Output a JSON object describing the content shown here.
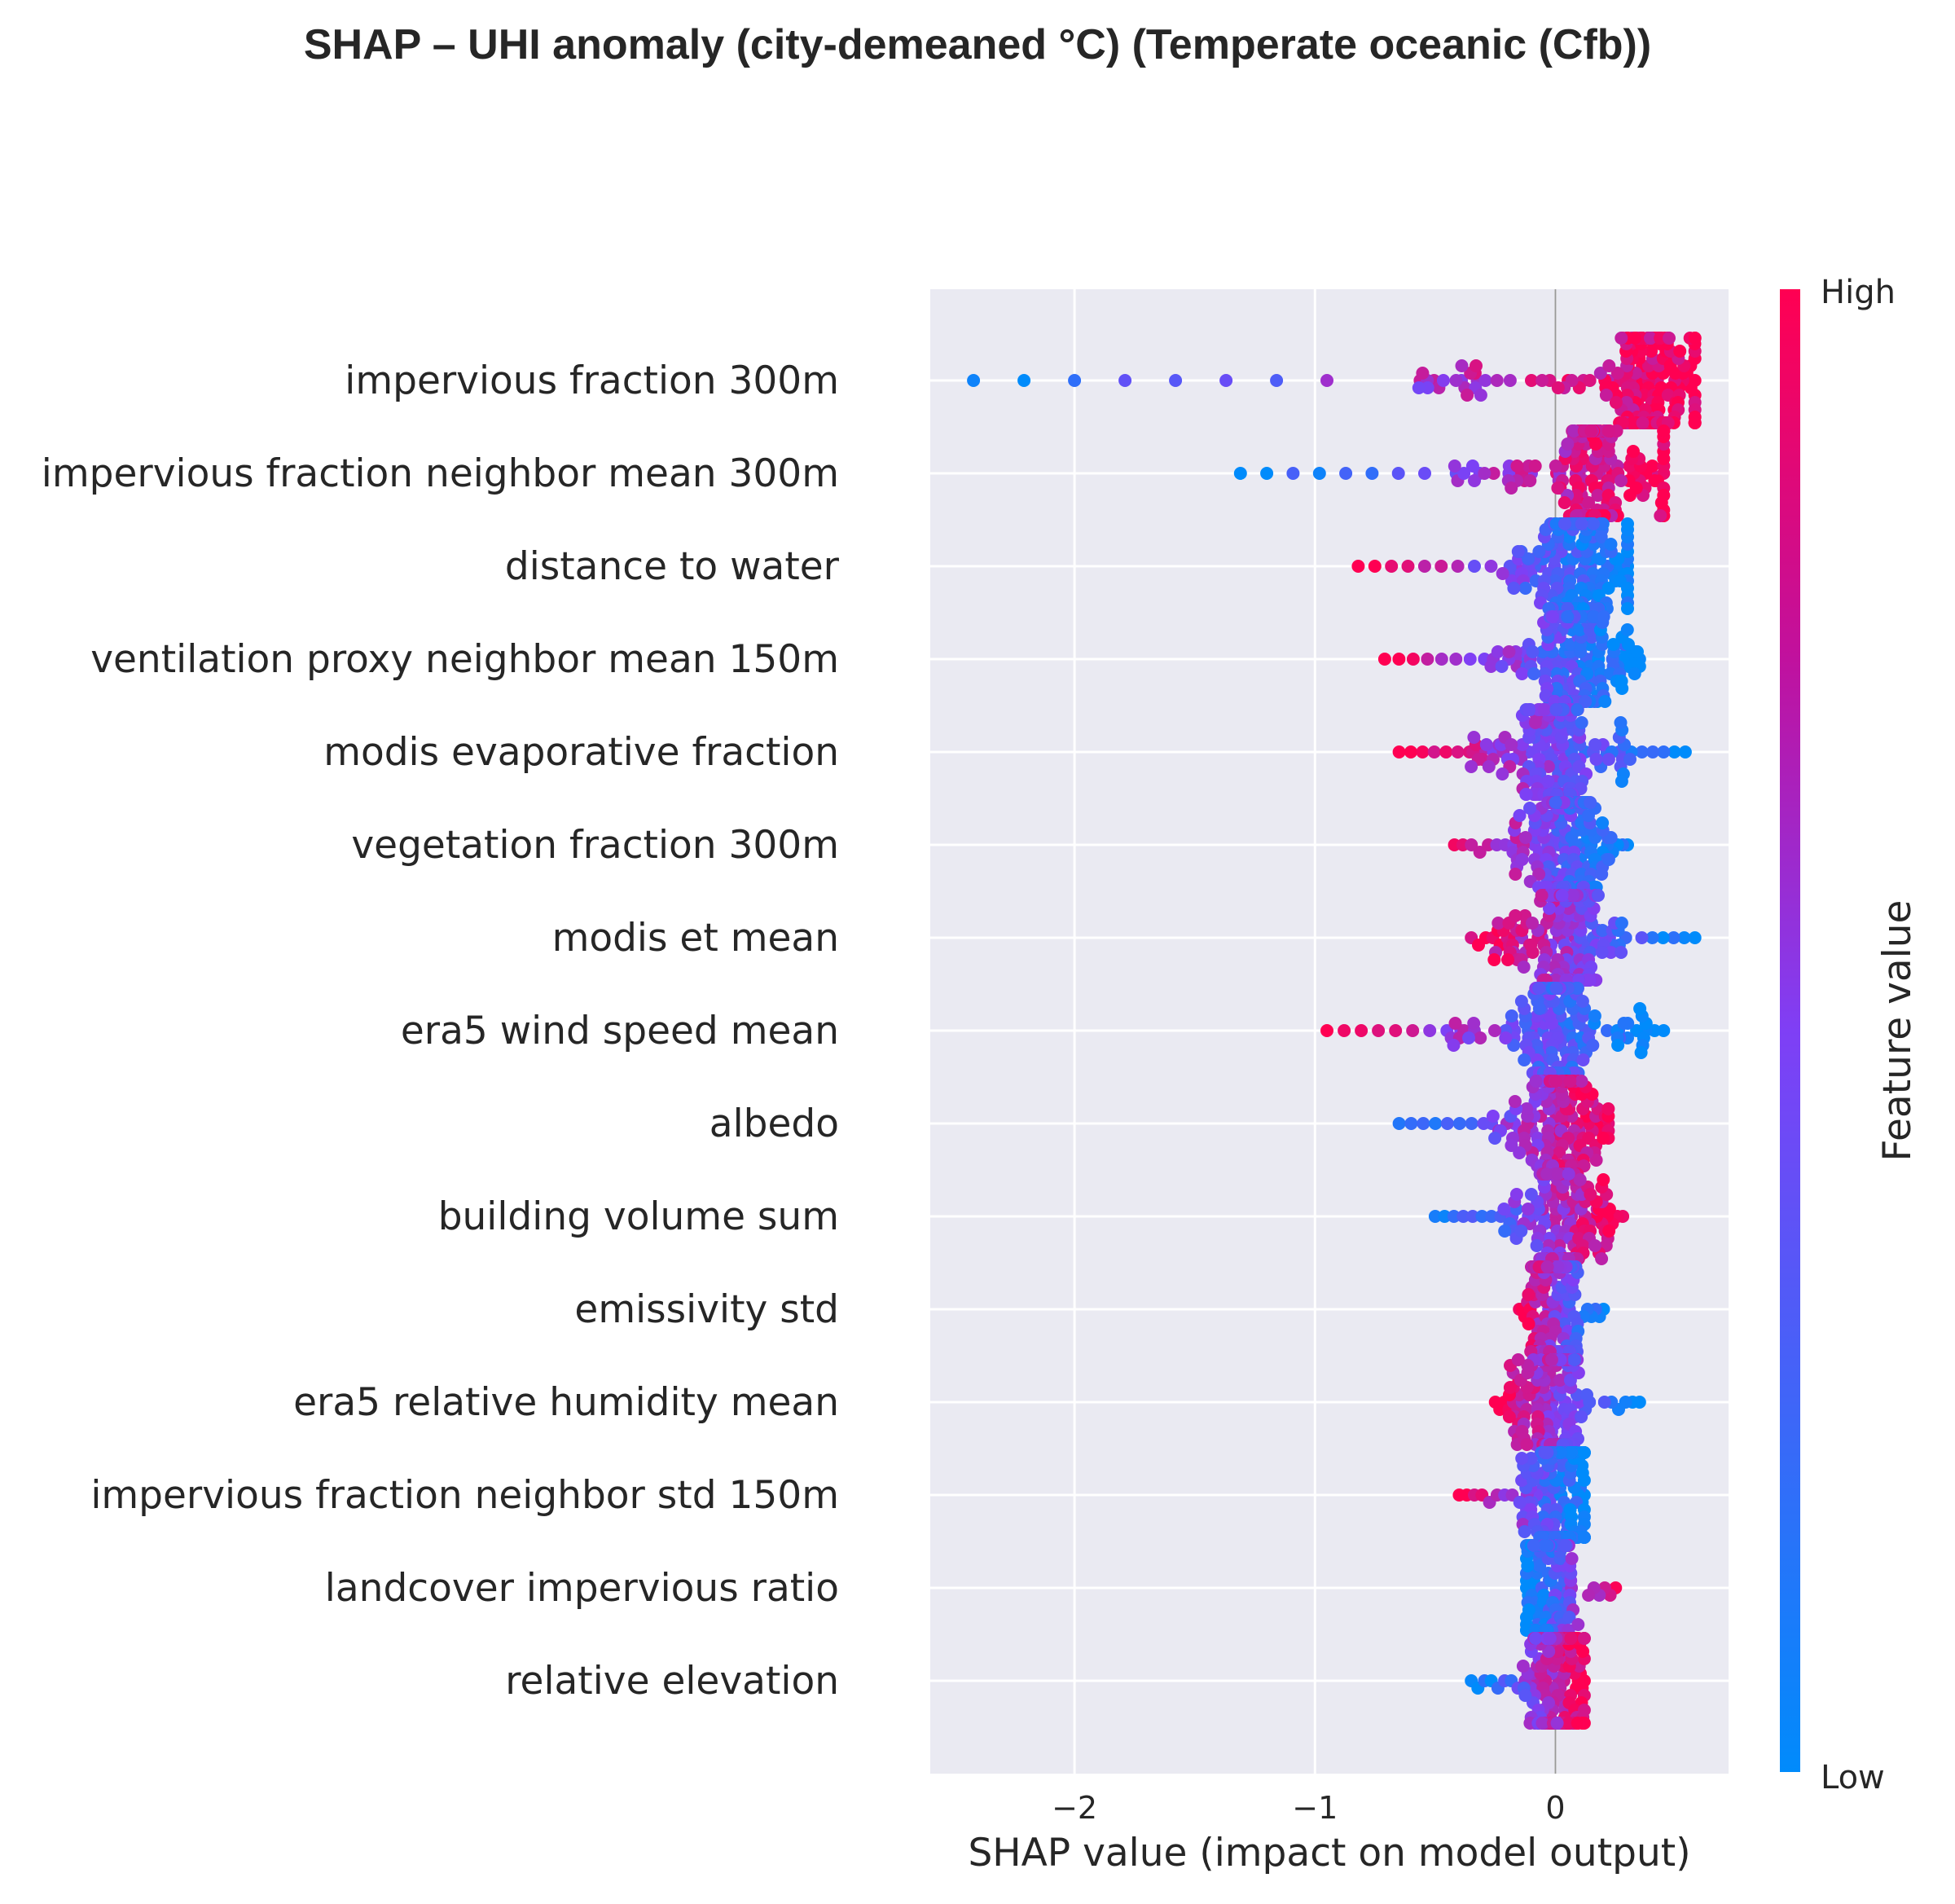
{
  "chart_data": {
    "type": "scatter",
    "title": "SHAP – UHI anomaly (city-demeaned °C) (Temperate oceanic (Cfb))",
    "xlabel": "SHAP value (impact on model output)",
    "xlim": [
      -2.6,
      0.72
    ],
    "x_ticks": [
      {
        "value": -2,
        "label": "−2"
      },
      {
        "value": -1,
        "label": "−1"
      },
      {
        "value": 0,
        "label": "0"
      }
    ],
    "grid": true,
    "colorbar": {
      "title": "Feature value",
      "high_label": "High",
      "low_label": "Low",
      "low_color": "#008bfb",
      "high_color": "#ff0052"
    },
    "features": [
      {
        "name": "impervious fraction 300m",
        "min": -2.42,
        "max": 0.58,
        "neg_color": "low",
        "spread": 0.55,
        "center": 0.38
      },
      {
        "name": "impervious fraction neighbor mean 300m",
        "min": -1.31,
        "max": 0.45,
        "neg_color": "low",
        "spread": 0.45,
        "center": 0.15
      },
      {
        "name": "distance to water",
        "min": -0.82,
        "max": 0.3,
        "neg_color": "high",
        "spread": 0.45,
        "center": 0.1
      },
      {
        "name": "ventilation proxy neighbor mean 150m",
        "min": -0.71,
        "max": 0.35,
        "neg_color": "high",
        "spread": 0.45,
        "center": 0.08
      },
      {
        "name": "modis evaporative fraction",
        "min": -0.65,
        "max": 0.54,
        "neg_color": "high",
        "spread": 0.4,
        "center": 0.0
      },
      {
        "name": "vegetation fraction 300m",
        "min": -0.42,
        "max": 0.3,
        "neg_color": "high",
        "spread": 0.4,
        "center": 0.05
      },
      {
        "name": "modis et mean",
        "min": -0.35,
        "max": 0.58,
        "neg_color": "high",
        "spread": 0.38,
        "center": 0.05
      },
      {
        "name": "era5 wind speed mean",
        "min": -0.95,
        "max": 0.45,
        "neg_color": "high",
        "spread": 0.38,
        "center": 0.0
      },
      {
        "name": "albedo",
        "min": -0.65,
        "max": 0.22,
        "neg_color": "low",
        "spread": 0.35,
        "center": 0.02
      },
      {
        "name": "building volume sum",
        "min": -0.5,
        "max": 0.28,
        "neg_color": "low",
        "spread": 0.3,
        "center": 0.02
      },
      {
        "name": "emissivity std",
        "min": -0.15,
        "max": 0.2,
        "neg_color": "high",
        "spread": 0.32,
        "center": 0.0
      },
      {
        "name": "era5 relative humidity mean",
        "min": -0.25,
        "max": 0.35,
        "neg_color": "high",
        "spread": 0.32,
        "center": 0.0
      },
      {
        "name": "impervious fraction neighbor std 150m",
        "min": -0.4,
        "max": 0.12,
        "neg_color": "high",
        "spread": 0.28,
        "center": 0.02
      },
      {
        "name": "landcover impervious ratio",
        "min": -0.12,
        "max": 0.25,
        "neg_color": "low",
        "spread": 0.28,
        "center": -0.02
      },
      {
        "name": "relative elevation",
        "min": -0.35,
        "max": 0.12,
        "neg_color": "low",
        "spread": 0.28,
        "center": 0.02
      }
    ]
  }
}
